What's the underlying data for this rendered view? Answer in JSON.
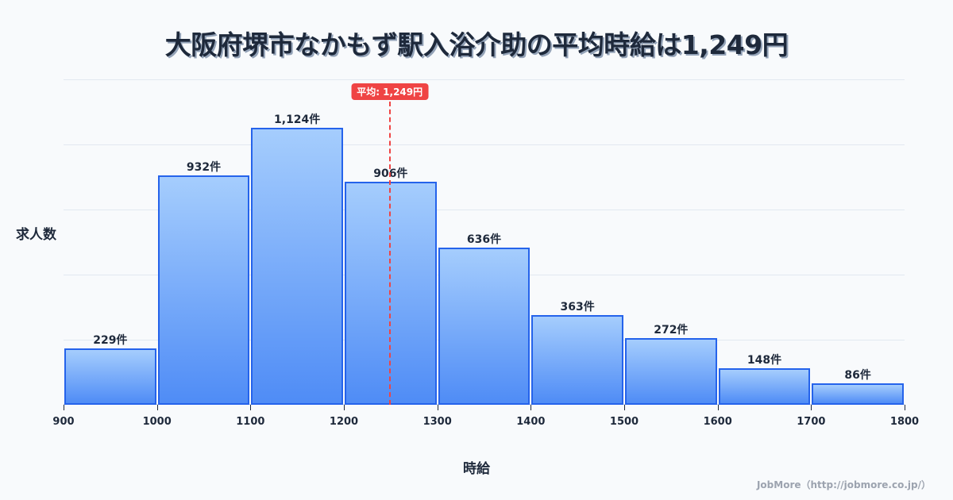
{
  "title": "大阪府堺市なかもず駅入浴介助の平均時給は1,249円",
  "chart_data": {
    "type": "bar",
    "title": "大阪府堺市なかもず駅入浴介助の平均時給は1,249円",
    "xlabel": "時給",
    "ylabel": "求人数",
    "bins": [
      [
        900,
        1000
      ],
      [
        1000,
        1100
      ],
      [
        1100,
        1200
      ],
      [
        1200,
        1300
      ],
      [
        1300,
        1400
      ],
      [
        1400,
        1500
      ],
      [
        1500,
        1600
      ],
      [
        1600,
        1700
      ],
      [
        1700,
        1800
      ]
    ],
    "categories": [
      "900-1000",
      "1000-1100",
      "1100-1200",
      "1200-1300",
      "1300-1400",
      "1400-1500",
      "1500-1600",
      "1600-1700",
      "1700-1800"
    ],
    "values": [
      229,
      932,
      1124,
      906,
      636,
      363,
      272,
      148,
      86
    ],
    "value_labels": [
      "229件",
      "932件",
      "1,124件",
      "906件",
      "636件",
      "363件",
      "272件",
      "148件",
      "86件"
    ],
    "x_ticks": [
      "900",
      "1000",
      "1100",
      "1200",
      "1300",
      "1400",
      "1500",
      "1600",
      "1700",
      "1800"
    ],
    "xlim": [
      900,
      1800
    ],
    "ylim": [
      0,
      1320
    ],
    "grid": true,
    "mean": 1249,
    "mean_label": "平均: 1,249円",
    "colors": {
      "bar_fill_top": "#a5cdfd",
      "bar_fill_bottom": "#4f8cf6",
      "bar_border": "#2563eb",
      "mean_line": "#ef4444"
    }
  },
  "credit": "JobMore（http://jobmore.co.jp/）"
}
